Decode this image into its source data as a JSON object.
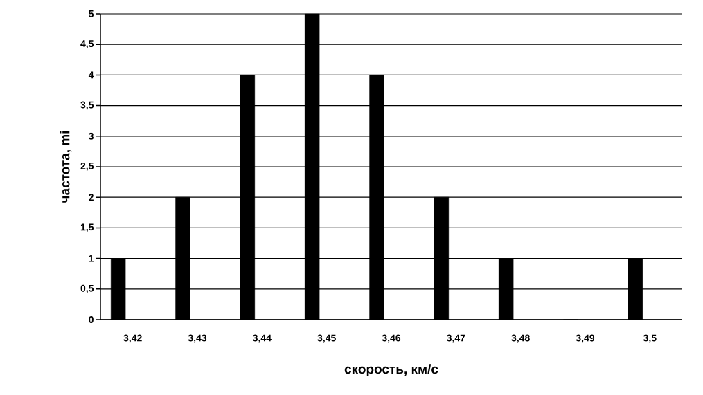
{
  "chart_data": {
    "type": "bar",
    "xlabel": "скорость, км/с",
    "ylabel": "частота, mi",
    "categories": [
      "3,42",
      "3,43",
      "3,44",
      "3,45",
      "3,46",
      "3,47",
      "3,48",
      "3,49",
      "3,5"
    ],
    "values": [
      1,
      2,
      4,
      5,
      4,
      2,
      1,
      0,
      1
    ],
    "color": "#000000",
    "ylim": [
      0,
      5
    ],
    "yticks": [
      0,
      {
        "value": 0.5,
        "label": "0,5"
      },
      1,
      {
        "value": 1.5,
        "label": "1,5"
      },
      2,
      {
        "value": 2.5,
        "label": "2,5"
      },
      3,
      {
        "value": 3.5,
        "label": "3,5"
      },
      4,
      {
        "value": 4.5,
        "label": "4,5"
      },
      5
    ],
    "grid": "y"
  }
}
